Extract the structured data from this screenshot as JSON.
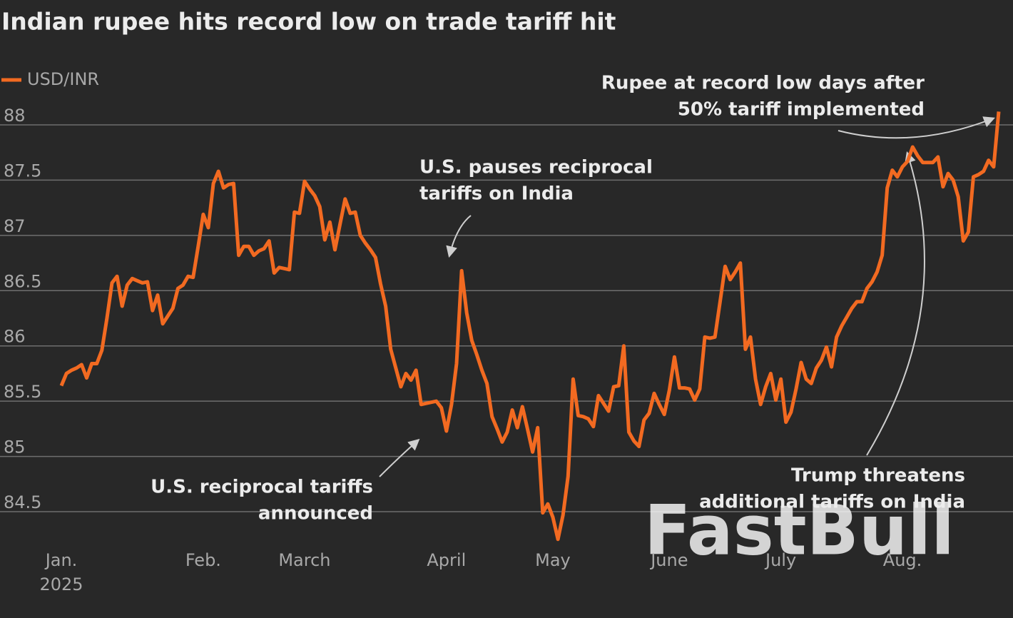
{
  "chart_data": {
    "type": "line",
    "title": "Indian rupee hits record low on trade tariff hit",
    "series": [
      {
        "name": "USD/INR",
        "color": "#f26a21",
        "values": [
          85.64,
          85.75,
          85.78,
          85.8,
          85.83,
          85.71,
          85.84,
          85.84,
          85.96,
          86.25,
          86.57,
          86.63,
          86.36,
          86.55,
          86.61,
          86.59,
          86.57,
          86.58,
          86.32,
          86.46,
          86.2,
          86.27,
          86.34,
          86.52,
          86.55,
          86.63,
          86.62,
          86.9,
          87.19,
          87.07,
          87.47,
          87.58,
          87.43,
          87.46,
          87.47,
          86.82,
          86.9,
          86.9,
          86.82,
          86.86,
          86.88,
          86.95,
          86.66,
          86.71,
          86.7,
          86.69,
          87.21,
          87.2,
          87.49,
          87.42,
          87.36,
          87.26,
          86.96,
          87.12,
          86.87,
          87.1,
          87.33,
          87.2,
          87.21,
          87.0,
          86.93,
          86.87,
          86.8,
          86.56,
          86.36,
          85.97,
          85.8,
          85.63,
          85.75,
          85.69,
          85.78,
          85.47,
          85.48,
          85.49,
          85.5,
          85.44,
          85.23,
          85.47,
          85.84,
          86.68,
          86.3,
          86.05,
          85.92,
          85.78,
          85.66,
          85.36,
          85.25,
          85.13,
          85.22,
          85.42,
          85.26,
          85.45,
          85.25,
          85.04,
          85.26,
          84.49,
          84.57,
          84.45,
          84.25,
          84.47,
          84.82,
          85.7,
          85.37,
          85.36,
          85.34,
          85.27,
          85.55,
          85.48,
          85.41,
          85.63,
          85.64,
          86.0,
          85.22,
          85.14,
          85.09,
          85.33,
          85.39,
          85.57,
          85.47,
          85.38,
          85.6,
          85.9,
          85.62,
          85.62,
          85.61,
          85.51,
          85.61,
          86.08,
          86.07,
          86.08,
          86.4,
          86.72,
          86.6,
          86.67,
          86.75,
          85.97,
          86.08,
          85.7,
          85.47,
          85.63,
          85.75,
          85.51,
          85.7,
          85.31,
          85.4,
          85.61,
          85.85,
          85.7,
          85.66,
          85.8,
          85.87,
          85.99,
          85.81,
          86.08,
          86.18,
          86.26,
          86.34,
          86.4,
          86.4,
          86.52,
          86.58,
          86.67,
          86.82,
          87.43,
          87.59,
          87.53,
          87.62,
          87.67,
          87.8,
          87.72,
          87.66,
          87.66,
          87.66,
          87.71,
          87.44,
          87.56,
          87.5,
          87.35,
          86.95,
          87.03,
          87.53,
          87.55,
          87.58,
          87.68,
          87.62,
          88.12
        ]
      }
    ],
    "xlim": [
      0,
      185
    ],
    "xticks": [
      {
        "value": 0,
        "label": "Jan."
      },
      {
        "value": 28,
        "label": "Feb."
      },
      {
        "value": 48,
        "label": "March"
      },
      {
        "value": 76,
        "label": "April"
      },
      {
        "value": 97,
        "label": "May"
      },
      {
        "value": 120,
        "label": "June"
      },
      {
        "value": 142,
        "label": "July"
      },
      {
        "value": 166,
        "label": "Aug."
      }
    ],
    "year_label": "2025",
    "ylim": [
      84.2,
      88.3
    ],
    "yticks": [
      84.5,
      85,
      85.5,
      86,
      86.5,
      87,
      87.5,
      88
    ],
    "grid": true,
    "annotations": [
      {
        "lines": [
          "U.S. pauses reciprocal",
          "tariffs on India"
        ]
      },
      {
        "lines": [
          "U.S. reciprocal tariffs",
          "announced"
        ]
      },
      {
        "lines": [
          "Rupee at record low days after",
          "50% tariff implemented"
        ]
      },
      {
        "lines": [
          "Trump threatens",
          "additional tariffs on India"
        ]
      }
    ],
    "watermark": "FastBull"
  }
}
